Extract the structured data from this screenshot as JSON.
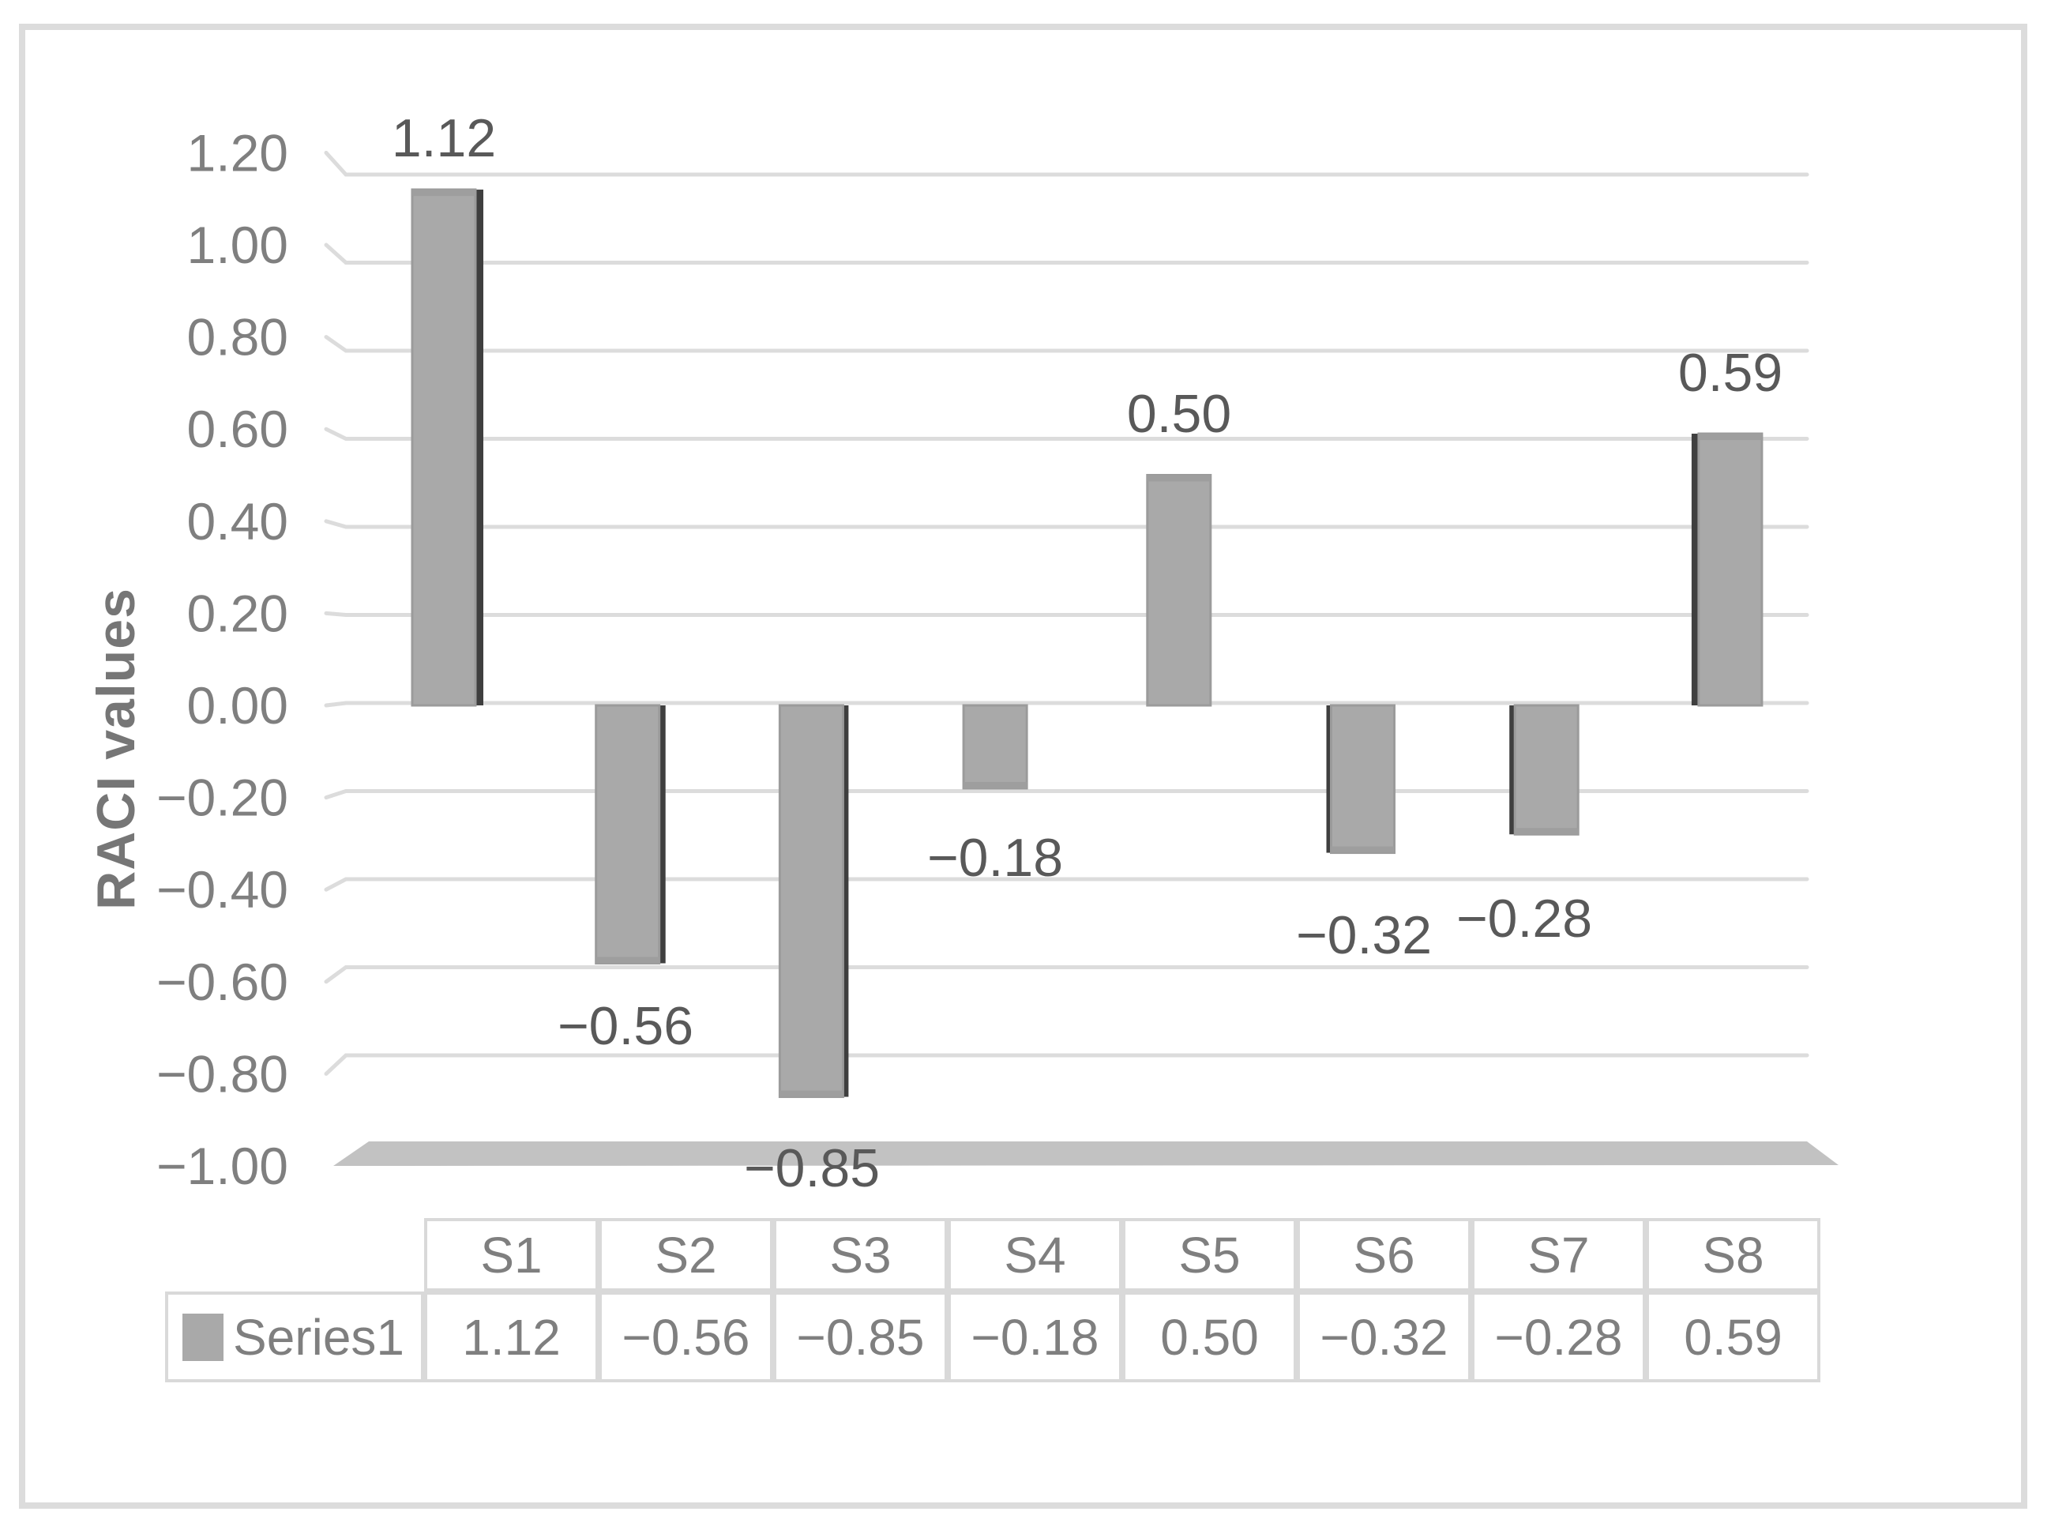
{
  "chart_data": {
    "type": "bar",
    "title": "",
    "xlabel": "",
    "ylabel": "RACI values",
    "categories": [
      "S1",
      "S2",
      "S3",
      "S4",
      "S5",
      "S6",
      "S7",
      "S8"
    ],
    "series_name": "Series1",
    "series": [
      {
        "name": "Series1",
        "values": [
          1.12,
          -0.56,
          -0.85,
          -0.18,
          0.5,
          -0.32,
          -0.28,
          0.59
        ]
      }
    ],
    "values": [
      1.12,
      -0.56,
      -0.85,
      -0.18,
      0.5,
      -0.32,
      -0.28,
      0.59
    ],
    "labels": [
      "1.12",
      "−0.56",
      "−0.85",
      "−0.18",
      "0.50",
      "−0.32",
      "−0.28",
      "0.59"
    ],
    "y_ticks": [
      "1.20",
      "1.00",
      "0.80",
      "0.60",
      "0.40",
      "0.20",
      "0.00",
      "−0.20",
      "−0.40",
      "−0.60",
      "−0.80",
      "−1.00"
    ],
    "ylim": [
      -1.0,
      1.2
    ],
    "grid": true,
    "style_3d": true,
    "legend_position": "table-row-left",
    "colors": {
      "bar_fill": "#a9a9a9",
      "bar_outline": "#9b9b9b",
      "bar_cap": "#9e9e9e",
      "bar_side_shadow": "#3f3f3f",
      "gridline": "#dcdcdc",
      "floor_band": "#c2c2c2",
      "tick_text": "#7f7f7f",
      "data_label_text": "#595959",
      "axis_title_text": "#767676",
      "table_border": "#d9d9d9",
      "table_text": "#7f7f7f",
      "page_border": "#dcdcdc"
    }
  },
  "table": {
    "corner_label": ""
  }
}
